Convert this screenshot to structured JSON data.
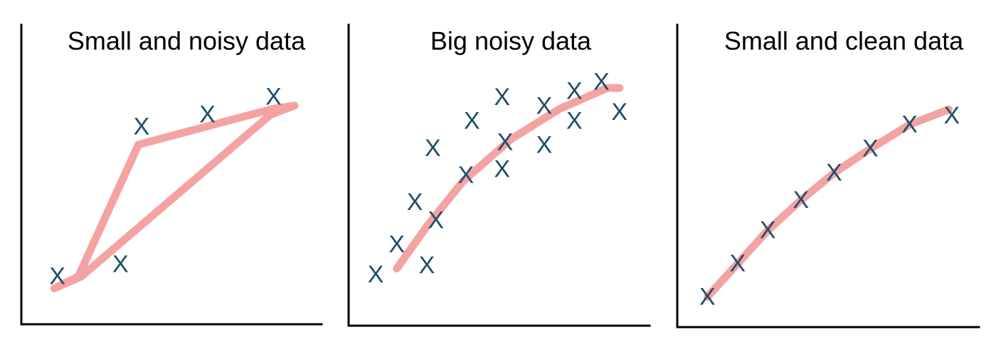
{
  "colors": {
    "point": "#1f4e69",
    "curve": "#f4a3a3",
    "axis": "#000000"
  },
  "chart_data": [
    {
      "type": "scatter",
      "title": "Small and noisy data",
      "xlim": [
        0,
        10
      ],
      "ylim": [
        0,
        10
      ],
      "grid": false,
      "marker": "X",
      "points": [
        {
          "x": 1.2,
          "y": 1.6
        },
        {
          "x": 3.3,
          "y": 2.0
        },
        {
          "x": 4.0,
          "y": 6.6
        },
        {
          "x": 6.2,
          "y": 7.0
        },
        {
          "x": 8.4,
          "y": 7.6
        }
      ],
      "fit_line": [
        {
          "x": 1.1,
          "y": 1.2
        },
        {
          "x": 1.9,
          "y": 1.6
        },
        {
          "x": 3.9,
          "y": 6.0
        },
        {
          "x": 8.4,
          "y": 7.2
        },
        {
          "x": 9.1,
          "y": 7.3
        },
        {
          "x": 8.3,
          "y": 7.0
        },
        {
          "x": 2.0,
          "y": 1.6
        },
        {
          "x": 1.1,
          "y": 1.2
        }
      ]
    },
    {
      "type": "scatter",
      "title": "Big noisy data",
      "xlim": [
        0,
        10
      ],
      "ylim": [
        0,
        10
      ],
      "grid": false,
      "marker": "X",
      "points": [
        {
          "x": 0.9,
          "y": 1.7
        },
        {
          "x": 1.6,
          "y": 2.7
        },
        {
          "x": 2.2,
          "y": 4.1
        },
        {
          "x": 2.6,
          "y": 2.0
        },
        {
          "x": 2.9,
          "y": 3.5
        },
        {
          "x": 2.8,
          "y": 5.9
        },
        {
          "x": 3.9,
          "y": 5.0
        },
        {
          "x": 4.1,
          "y": 6.8
        },
        {
          "x": 5.1,
          "y": 5.2
        },
        {
          "x": 5.2,
          "y": 6.1
        },
        {
          "x": 5.1,
          "y": 7.6
        },
        {
          "x": 6.5,
          "y": 6.0
        },
        {
          "x": 6.5,
          "y": 7.3
        },
        {
          "x": 7.5,
          "y": 6.8
        },
        {
          "x": 7.5,
          "y": 7.8
        },
        {
          "x": 8.4,
          "y": 8.1
        },
        {
          "x": 9.0,
          "y": 7.1
        }
      ],
      "fit_line": [
        {
          "x": 1.6,
          "y": 1.9
        },
        {
          "x": 2.6,
          "y": 3.3
        },
        {
          "x": 3.8,
          "y": 4.8
        },
        {
          "x": 5.4,
          "y": 6.2
        },
        {
          "x": 7.0,
          "y": 7.2
        },
        {
          "x": 8.6,
          "y": 7.9
        },
        {
          "x": 9.0,
          "y": 7.9
        }
      ]
    },
    {
      "type": "scatter",
      "title": "Small and clean data",
      "xlim": [
        0,
        10
      ],
      "ylim": [
        0,
        10
      ],
      "grid": false,
      "marker": "X",
      "points": [
        {
          "x": 1.0,
          "y": 1.0
        },
        {
          "x": 2.0,
          "y": 2.1
        },
        {
          "x": 3.0,
          "y": 3.2
        },
        {
          "x": 4.1,
          "y": 4.2
        },
        {
          "x": 5.2,
          "y": 5.1
        },
        {
          "x": 6.4,
          "y": 5.9
        },
        {
          "x": 7.7,
          "y": 6.7
        },
        {
          "x": 9.1,
          "y": 7.0
        }
      ],
      "fit_line": [
        {
          "x": 1.0,
          "y": 1.0
        },
        {
          "x": 2.0,
          "y": 2.1
        },
        {
          "x": 3.0,
          "y": 3.2
        },
        {
          "x": 4.1,
          "y": 4.2
        },
        {
          "x": 5.2,
          "y": 5.1
        },
        {
          "x": 6.4,
          "y": 5.9
        },
        {
          "x": 7.7,
          "y": 6.7
        },
        {
          "x": 9.0,
          "y": 7.2
        }
      ]
    }
  ]
}
